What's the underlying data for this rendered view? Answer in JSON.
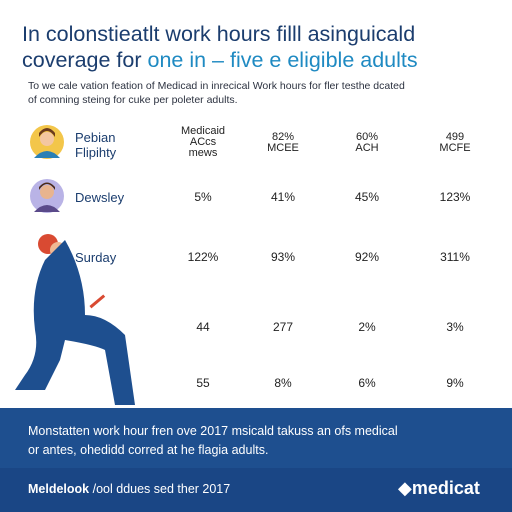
{
  "header": {
    "title_line1": "In colonstieatlt work hours filll asinguicald",
    "title_line2_lead": "coverage for",
    "title_line2_highlight": "one in – five e eligible adults",
    "subtitle": [
      "To we cale vation feation of Medicad in inrecical Work hours for fler testhe dcated",
      "of comning steing for cuke per poleter adults."
    ]
  },
  "table": {
    "corner": [
      "Pebian",
      "Flipihty"
    ],
    "columns": [
      [
        "Medicaid",
        "ACcs",
        "mews"
      ],
      [
        "82%",
        "MCEE"
      ],
      [
        "60%",
        "ACH"
      ],
      [
        "499",
        "MCFE"
      ]
    ],
    "rows": [
      {
        "label": "Dewsley",
        "cells": [
          "5%",
          "41%",
          "45%",
          "123%"
        ]
      },
      {
        "label": "Surday",
        "cells": [
          "122%",
          "93%",
          "92%",
          "311%"
        ]
      },
      {
        "cells": [
          "44",
          "277",
          "2%",
          "3%"
        ]
      },
      {
        "cells": [
          "55",
          "8%",
          "6%",
          "9%"
        ]
      }
    ]
  },
  "footer": {
    "note": [
      "Monstatten work hour fren ove 2017 msicald takuss an ofs medical",
      "or antes, ohedidd corred at he flagia adults."
    ],
    "source_brand": "Meldelook",
    "source_text": "/ool ddues sed ther 2017",
    "logo": "medicat"
  }
}
